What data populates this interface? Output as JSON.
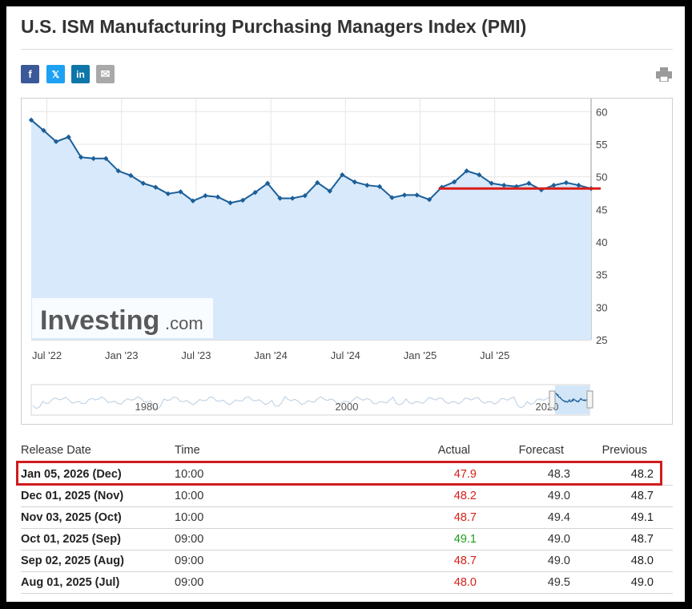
{
  "title": "U.S. ISM Manufacturing Purchasing Managers Index (PMI)",
  "share": [
    {
      "icon": "facebook-icon",
      "glyph": "f"
    },
    {
      "icon": "x-icon",
      "glyph": "𝕏"
    },
    {
      "icon": "linkedin-icon",
      "glyph": "in"
    },
    {
      "icon": "email-icon",
      "glyph": "✉"
    }
  ],
  "print_icon": "printer-icon",
  "watermark": {
    "brand": "Investing",
    "suffix": ".com"
  },
  "chart_data": {
    "type": "area",
    "y_ticks": [
      60,
      55,
      50,
      45,
      40,
      35,
      30,
      25
    ],
    "ylim": [
      25,
      62
    ],
    "x_ticks": [
      "Jul '22",
      "Jan '23",
      "Jul '23",
      "Jan '24",
      "Jul '24",
      "Jan '25",
      "Jul '25"
    ],
    "values": [
      58.7,
      57.1,
      55.4,
      56.1,
      53.0,
      52.8,
      52.8,
      50.9,
      50.2,
      49.0,
      48.4,
      47.4,
      47.7,
      46.3,
      47.1,
      46.9,
      46.0,
      46.4,
      47.6,
      49.0,
      46.7,
      46.7,
      47.1,
      49.1,
      47.8,
      50.3,
      49.2,
      48.7,
      48.5,
      46.8,
      47.2,
      47.2,
      46.5,
      48.4,
      49.2,
      50.9,
      50.3,
      49.0,
      48.7,
      48.5,
      49.0,
      48.0,
      48.7,
      49.1,
      48.7,
      48.2
    ],
    "forecast_line": 48.2,
    "navigator_labels": [
      "1980",
      "2000",
      "2020"
    ],
    "colors": {
      "line": "#1b5f99",
      "fill": "#d7e9fb",
      "forecast": "#d91e18"
    }
  },
  "table": {
    "headers": {
      "date": "Release Date",
      "time": "Time",
      "actual": "Actual",
      "forecast": "Forecast",
      "previous": "Previous"
    },
    "rows": [
      {
        "date": "Jan 05, 2026 (Dec)",
        "time": "10:00",
        "actual": "47.9",
        "actual_color": "red",
        "forecast": "48.3",
        "previous": "48.2"
      },
      {
        "date": "Dec 01, 2025 (Nov)",
        "time": "10:00",
        "actual": "48.2",
        "actual_color": "red",
        "forecast": "49.0",
        "previous": "48.7"
      },
      {
        "date": "Nov 03, 2025 (Oct)",
        "time": "10:00",
        "actual": "48.7",
        "actual_color": "red",
        "forecast": "49.4",
        "previous": "49.1"
      },
      {
        "date": "Oct 01, 2025 (Sep)",
        "time": "09:00",
        "actual": "49.1",
        "actual_color": "green",
        "forecast": "49.0",
        "previous": "48.7"
      },
      {
        "date": "Sep 02, 2025 (Aug)",
        "time": "09:00",
        "actual": "48.7",
        "actual_color": "red",
        "forecast": "49.0",
        "previous": "48.0"
      },
      {
        "date": "Aug 01, 2025 (Jul)",
        "time": "09:00",
        "actual": "48.0",
        "actual_color": "red",
        "forecast": "49.5",
        "previous": "49.0"
      }
    ]
  }
}
